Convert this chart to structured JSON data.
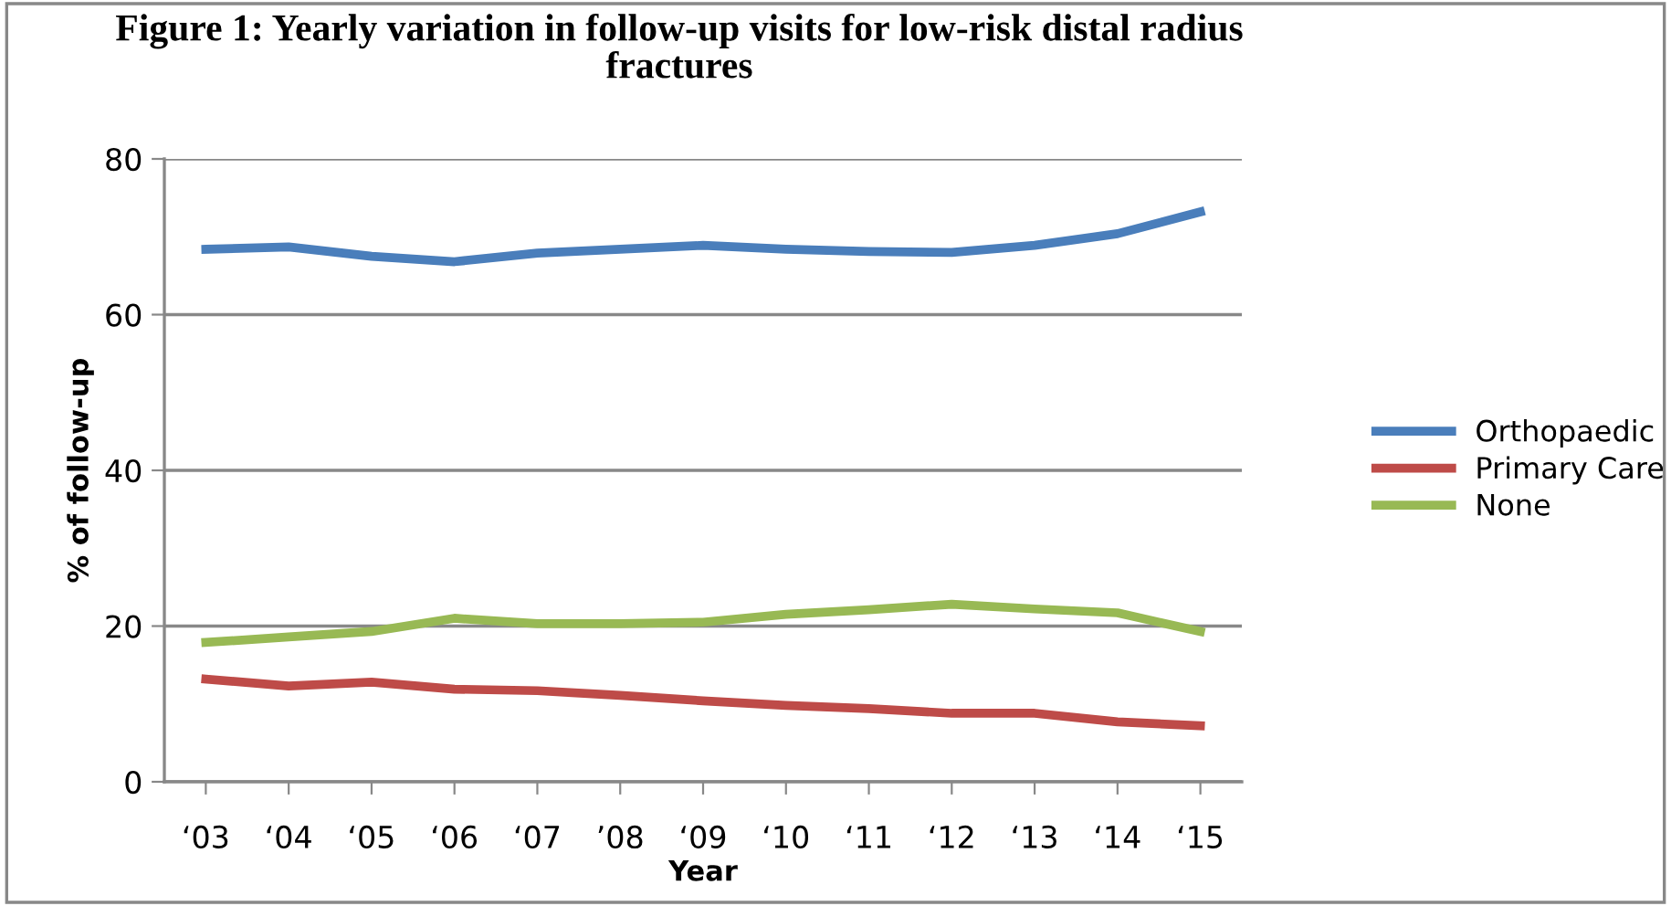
{
  "chart_data": {
    "type": "line",
    "title": "Figure 1: Yearly variation in follow-up visits for low-risk distal radius\nfractures",
    "xlabel": "Year",
    "ylabel": "% of follow-up",
    "categories": [
      "‘03",
      "‘04",
      "‘05",
      "‘06",
      "‘07",
      "’08",
      "‘09",
      "‘10",
      "‘11",
      "‘12",
      "‘13",
      "‘14",
      "‘15"
    ],
    "series": [
      {
        "name": "Orthopaedic",
        "color": "#4a7ebb",
        "values": [
          68.4,
          68.7,
          67.5,
          66.8,
          67.9,
          68.4,
          68.9,
          68.4,
          68.1,
          68.0,
          68.9,
          70.4,
          73.2
        ]
      },
      {
        "name": "Primary Care",
        "color": "#be4b48",
        "values": [
          13.2,
          12.3,
          12.8,
          11.9,
          11.7,
          11.1,
          10.4,
          9.8,
          9.4,
          8.8,
          8.8,
          7.7,
          7.2
        ]
      },
      {
        "name": "None",
        "color": "#98b954",
        "values": [
          17.9,
          18.6,
          19.3,
          21.0,
          20.3,
          20.3,
          20.5,
          21.5,
          22.1,
          22.8,
          22.2,
          21.7,
          19.3
        ]
      }
    ],
    "ylim": [
      0,
      80
    ],
    "yticks": [
      0,
      20,
      40,
      60,
      80
    ],
    "grid": "y",
    "legend": "right",
    "marker": "none",
    "line_style": "solid"
  }
}
